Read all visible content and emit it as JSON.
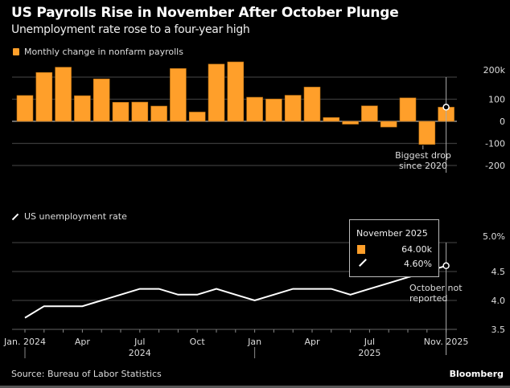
{
  "header": {
    "title": "US Payrolls Rise in November After October Plunge",
    "subtitle": "Unemployment rate rose to a four-year high"
  },
  "colors": {
    "bar": "#ff9f2a",
    "line": "#ffffff",
    "grid": "#3a3a3a",
    "background": "#000000"
  },
  "chart_data": [
    {
      "type": "bar",
      "legend": "Monthly change in nonfarm payrolls",
      "categories": [
        "Jan 2024",
        "Feb 2024",
        "Mar 2024",
        "Apr 2024",
        "May 2024",
        "Jun 2024",
        "Jul 2024",
        "Aug 2024",
        "Sep 2024",
        "Oct 2024",
        "Nov 2024",
        "Dec 2024",
        "Jan 2025",
        "Feb 2025",
        "Mar 2025",
        "Apr 2025",
        "May 2025",
        "Jun 2025",
        "Jul 2025",
        "Aug 2025",
        "Sep 2025",
        "Oct 2025",
        "Nov 2025"
      ],
      "values": [
        117,
        221,
        245,
        116,
        192,
        86,
        87,
        69,
        239,
        42,
        259,
        269,
        109,
        101,
        118,
        155,
        17,
        -13,
        70,
        -26,
        106,
        -105,
        64
      ],
      "ylim": [
        -250,
        250
      ],
      "yticks": [
        200,
        100,
        0,
        -100,
        -200
      ],
      "ytick_labels": [
        "200k",
        "100",
        "0",
        "-100",
        "-200"
      ],
      "annotation": {
        "text_line1": "Biggest drop",
        "text_line2": "since 2020",
        "category": "Oct 2025"
      }
    },
    {
      "type": "line",
      "legend": "US unemployment rate",
      "categories": [
        "Jan 2024",
        "Feb 2024",
        "Mar 2024",
        "Apr 2024",
        "May 2024",
        "Jun 2024",
        "Jul 2024",
        "Aug 2024",
        "Sep 2024",
        "Oct 2024",
        "Nov 2024",
        "Dec 2024",
        "Jan 2025",
        "Feb 2025",
        "Mar 2025",
        "Apr 2025",
        "May 2025",
        "Jun 2025",
        "Jul 2025",
        "Aug 2025",
        "Sep 2025",
        "Oct 2025",
        "Nov 2025"
      ],
      "values": [
        3.7,
        3.9,
        3.9,
        3.9,
        4.0,
        4.1,
        4.2,
        4.2,
        4.1,
        4.1,
        4.2,
        4.1,
        4.0,
        4.1,
        4.2,
        4.2,
        4.2,
        4.1,
        4.2,
        4.3,
        4.4,
        null,
        4.6
      ],
      "ylim": [
        3.4,
        5.2
      ],
      "yticks": [
        5.0,
        4.5,
        4.0,
        3.5
      ],
      "ytick_labels": [
        "5.0%",
        "4.5",
        "4.0",
        "3.5"
      ],
      "annotation": {
        "text_line1": "October not",
        "text_line2": "reported"
      }
    }
  ],
  "xaxis": {
    "month_labels": [
      {
        "index": 0,
        "label": "Jan. 2024"
      },
      {
        "index": 3,
        "label": "Apr"
      },
      {
        "index": 6,
        "label": "Jul"
      },
      {
        "index": 9,
        "label": "Oct"
      },
      {
        "index": 12,
        "label": "Jan"
      },
      {
        "index": 15,
        "label": "Apr"
      },
      {
        "index": 18,
        "label": "Jul"
      },
      {
        "index": 22,
        "label": "Nov. 2025"
      }
    ],
    "year_labels": [
      {
        "index": 6,
        "label": "2024"
      },
      {
        "index": 18,
        "label": "2025"
      }
    ]
  },
  "tooltip": {
    "title": "November 2025",
    "payrolls": "64.00k",
    "rate": "4.60%"
  },
  "footer": {
    "source": "Source: Bureau of Labor Statistics",
    "brand": "Bloomberg"
  }
}
